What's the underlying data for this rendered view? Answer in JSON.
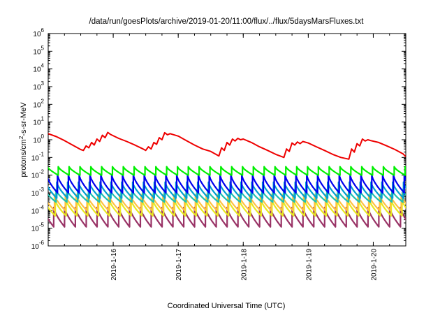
{
  "chart_data": {
    "type": "line",
    "title": "/data/run/goesPlots/archive/2019-01-20/11:00/flux/../flux/5daysMarsFluxes.txt",
    "xlabel": "Coordinated Universal Time (UTC)",
    "ylabel": "protons/cm2-s-sr-MeV",
    "y_scale": "log",
    "ylim": [
      1e-06,
      1000000.0
    ],
    "y_ticks": [
      {
        "base": "10",
        "exp": "-6"
      },
      {
        "base": "10",
        "exp": "-5"
      },
      {
        "base": "10",
        "exp": "-4"
      },
      {
        "base": "10",
        "exp": "-3"
      },
      {
        "base": "10",
        "exp": "-2"
      },
      {
        "base": "10",
        "exp": "-1"
      },
      {
        "base": "10",
        "exp": "0"
      },
      {
        "base": "10",
        "exp": "1"
      },
      {
        "base": "10",
        "exp": "2"
      },
      {
        "base": "10",
        "exp": "3"
      },
      {
        "base": "10",
        "exp": "4"
      },
      {
        "base": "10",
        "exp": "5"
      },
      {
        "base": "10",
        "exp": "6"
      }
    ],
    "xlim": [
      "2019-01-15 00:00",
      "2019-01-20 12:00"
    ],
    "x_ticks": [
      "2019-1-16",
      "2019-1-17",
      "2019-1-18",
      "2019-1-19",
      "2019-1-20"
    ],
    "grid": false,
    "series": [
      {
        "color": "#ee0000",
        "x": [
          "2019-01-15 00:00",
          "2019-01-15 03:00",
          "2019-01-15 06:00",
          "2019-01-15 09:00",
          "2019-01-15 12:00",
          "2019-01-15 13:00",
          "2019-01-15 14:00",
          "2019-01-15 15:00",
          "2019-01-15 16:00",
          "2019-01-15 17:00",
          "2019-01-15 18:00",
          "2019-01-15 19:00",
          "2019-01-15 20:00",
          "2019-01-15 21:00",
          "2019-01-15 22:00",
          "2019-01-15 23:00",
          "2019-01-16 02:00",
          "2019-01-16 05:00",
          "2019-01-16 08:00",
          "2019-01-16 11:00",
          "2019-01-16 12:00",
          "2019-01-16 13:00",
          "2019-01-16 14:00",
          "2019-01-16 15:00",
          "2019-01-16 16:00",
          "2019-01-16 17:00",
          "2019-01-16 18:00",
          "2019-01-16 19:00",
          "2019-01-16 20:00",
          "2019-01-16 21:00",
          "2019-01-17 00:00",
          "2019-01-17 03:00",
          "2019-01-17 06:00",
          "2019-01-17 09:00",
          "2019-01-17 12:00",
          "2019-01-17 15:00",
          "2019-01-17 16:00",
          "2019-01-17 17:00",
          "2019-01-17 18:00",
          "2019-01-17 19:00",
          "2019-01-17 20:00",
          "2019-01-17 21:00",
          "2019-01-17 22:00",
          "2019-01-17 23:00",
          "2019-01-18 00:00",
          "2019-01-18 03:00",
          "2019-01-18 06:00",
          "2019-01-18 09:00",
          "2019-01-18 12:00",
          "2019-01-18 15:00",
          "2019-01-18 16:00",
          "2019-01-18 17:00",
          "2019-01-18 18:00",
          "2019-01-18 19:00",
          "2019-01-18 20:00",
          "2019-01-18 21:00",
          "2019-01-18 22:00",
          "2019-01-19 00:00",
          "2019-01-19 03:00",
          "2019-01-19 06:00",
          "2019-01-19 09:00",
          "2019-01-19 12:00",
          "2019-01-19 15:00",
          "2019-01-19 16:00",
          "2019-01-19 17:00",
          "2019-01-19 18:00",
          "2019-01-19 19:00",
          "2019-01-19 20:00",
          "2019-01-19 21:00",
          "2019-01-19 22:00",
          "2019-01-19 23:00",
          "2019-01-20 02:00",
          "2019-01-20 05:00",
          "2019-01-20 08:00",
          "2019-01-20 11:00",
          "2019-01-20 12:00"
        ],
        "values": [
          2.2,
          1.5,
          0.9,
          0.5,
          0.28,
          0.25,
          0.45,
          0.35,
          0.7,
          0.5,
          1.1,
          0.8,
          1.8,
          1.3,
          2.6,
          2.0,
          1.2,
          0.8,
          0.5,
          0.3,
          0.25,
          0.4,
          0.3,
          0.7,
          0.55,
          1.3,
          1.0,
          2.5,
          1.9,
          2.2,
          1.6,
          0.9,
          0.5,
          0.3,
          0.22,
          0.12,
          0.35,
          0.25,
          0.7,
          0.5,
          1.1,
          0.85,
          1.2,
          1.0,
          1.1,
          0.7,
          0.4,
          0.25,
          0.15,
          0.1,
          0.3,
          0.22,
          0.65,
          0.5,
          0.75,
          0.6,
          0.8,
          0.65,
          0.4,
          0.25,
          0.15,
          0.1,
          0.08,
          0.3,
          0.2,
          0.6,
          0.45,
          1.1,
          0.85,
          1.0,
          0.9,
          0.7,
          0.45,
          0.28,
          0.16,
          0.11
        ]
      },
      {
        "color": "#00ee00",
        "min": 0.01,
        "max": 0.03
      },
      {
        "color": "#0000ee",
        "min": 0.001,
        "max": 0.01
      },
      {
        "color": "#00a0d0",
        "min": 0.0005,
        "max": 0.004
      },
      {
        "color": "#20c0b0",
        "min": 0.0003,
        "max": 0.0015
      },
      {
        "color": "#e8e820",
        "min": 5e-05,
        "max": 0.0004
      },
      {
        "color": "#ffc040",
        "min": 0.0001,
        "max": 0.0008
      },
      {
        "color": "#993366",
        "min": 1.2e-05,
        "max": 0.00015
      }
    ],
    "cycles_per_day": 6
  }
}
